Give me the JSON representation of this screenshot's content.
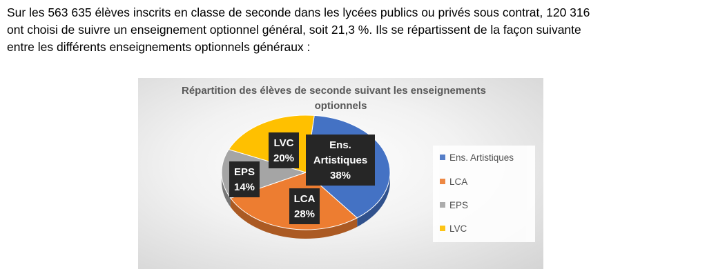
{
  "intro": {
    "line1": "Sur les 563 635 élèves inscrits en classe de seconde dans les lycées publics ou privés sous contrat, 120 316",
    "line2": "ont choisi de suivre un enseignement optionnel général, soit 21,3 %. Ils se répartissent de la façon suivante",
    "line3": "entre les différents enseignements optionnels généraux :"
  },
  "chart_data": {
    "type": "pie",
    "title_line1": "Répartition des élèves de seconde suivant les enseignements",
    "title_line2": "optionnels",
    "categories": [
      "Ens. Artistiques",
      "LCA",
      "EPS",
      "LVC"
    ],
    "values": [
      38,
      28,
      14,
      20
    ],
    "unit": "%",
    "colors": [
      "#4472C4",
      "#ED7D31",
      "#A5A5A5",
      "#FFC000"
    ],
    "legend_position": "right",
    "labels": [
      {
        "lines": [
          "Ens.",
          "Artistiques",
          "38%"
        ]
      },
      {
        "lines": [
          "LCA",
          "28%"
        ]
      },
      {
        "lines": [
          "EPS",
          "14%"
        ]
      },
      {
        "lines": [
          "LVC",
          "20%"
        ]
      }
    ]
  }
}
